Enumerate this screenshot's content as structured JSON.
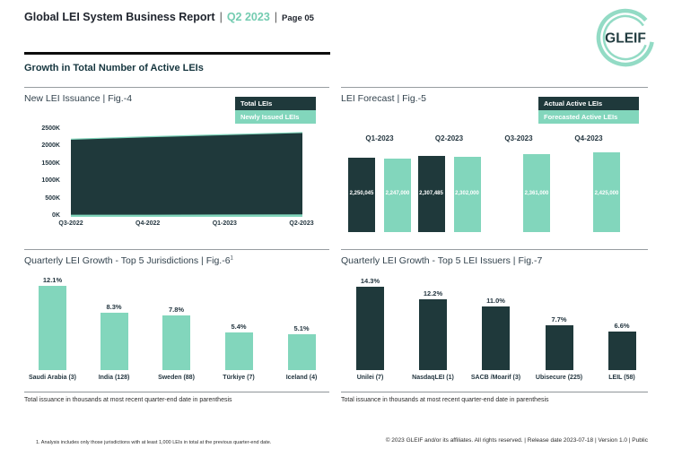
{
  "header": {
    "title": "Global LEI System Business Report",
    "divider1": "|",
    "period": "Q2 2023",
    "divider2": "|",
    "page_label": "Page 05",
    "logo_text": "GLEIF",
    "section_title": "Growth in Total Number of Active LEIs"
  },
  "colors": {
    "dark_teal": "#1f393b",
    "mint_teal": "#82d6bc",
    "header_accent": "#74ccb1"
  },
  "chart_data": [
    {
      "id": "fig4",
      "type": "area",
      "title": "New LEI Issuance | Fig.-4",
      "legend": [
        {
          "label": "Total LEIs",
          "color": "#1f393b"
        },
        {
          "label": "Newly Issued LEIs",
          "color": "#82d6bc"
        }
      ],
      "x": [
        "Q3-2022",
        "Q4-2022",
        "Q1-2023",
        "Q2-2023"
      ],
      "series": [
        {
          "name": "Total LEIs",
          "color": "#1f393b",
          "values": [
            2210000,
            2280000,
            2340000,
            2400000
          ]
        },
        {
          "name": "Newly Issued LEIs",
          "color": "#82d6bc",
          "values": [
            60000,
            62000,
            66000,
            70000
          ]
        }
      ],
      "yticks": [
        "2500K",
        "2000K",
        "1500K",
        "1000K",
        "500K",
        "0K"
      ],
      "ylim": [
        0,
        2500000
      ],
      "legend_position": "top-right",
      "grid": false
    },
    {
      "id": "fig5",
      "type": "bar",
      "title": "LEI Forecast | Fig.-5",
      "legend": [
        {
          "label": "Actual Active LEIs",
          "color": "#1f393b"
        },
        {
          "label": "Forecasted Active LEIs",
          "color": "#82d6bc"
        }
      ],
      "categories": [
        "Q1-2023",
        "Q2-2023",
        "Q3-2023",
        "Q4-2023"
      ],
      "series": [
        {
          "name": "Actual Active LEIs",
          "color": "#1f393b",
          "values": [
            2250045,
            2307485,
            null,
            null
          ],
          "labels": [
            "2,250,045",
            "2,307,485",
            null,
            null
          ]
        },
        {
          "name": "Forecasted Active LEIs",
          "color": "#82d6bc",
          "values": [
            2247000,
            2302000,
            2361000,
            2425000
          ],
          "labels": [
            "2,247,000",
            "2,302,000",
            "2,361,000",
            "2,425,000"
          ]
        }
      ],
      "ylim": [
        0,
        2425000
      ],
      "legend_position": "top-right",
      "grid": false
    },
    {
      "id": "fig6",
      "type": "bar",
      "title": "Quarterly LEI Growth - Top 5 Jurisdictions | Fig.-6",
      "title_sup": "1",
      "categories": [
        "Saudi Arabia (3)",
        "India (128)",
        "Sweden (88)",
        "Türkiye (7)",
        "Iceland (4)"
      ],
      "values": [
        12.1,
        8.3,
        7.8,
        5.4,
        5.1
      ],
      "value_labels": [
        "12.1%",
        "8.3%",
        "7.8%",
        "5.4%",
        "5.1%"
      ],
      "bar_color": "#82d6bc",
      "ylim": [
        0,
        12.5
      ],
      "grid": false,
      "note": "Total issuance in thousands at most recent quarter-end date in parenthesis"
    },
    {
      "id": "fig7",
      "type": "bar",
      "title": "Quarterly LEI Growth - Top 5 LEI Issuers | Fig.-7",
      "categories": [
        "Unilei (7)",
        "NasdaqLEI (1)",
        "SACB /Moarif (3)",
        "Ubisecure (225)",
        "LEIL (58)"
      ],
      "values": [
        14.3,
        12.2,
        11.0,
        7.7,
        6.6
      ],
      "value_labels": [
        "14.3%",
        "12.2%",
        "11.0%",
        "7.7%",
        "6.6%"
      ],
      "bar_color": "#1f393b",
      "ylim": [
        0,
        14.5
      ],
      "grid": false,
      "note": "Total issuance in thousands at most recent quarter-end date in parenthesis"
    }
  ],
  "footer": {
    "footnote": "1. Analysis includes only those jurisdictions with at least 1,000 LEIs in total at the previous quarter-end date.",
    "copyright": "© 2023 GLEIF and/or its affiliates. All rights reserved. | Release date 2023-07-18 | Version 1.0 | Public"
  }
}
